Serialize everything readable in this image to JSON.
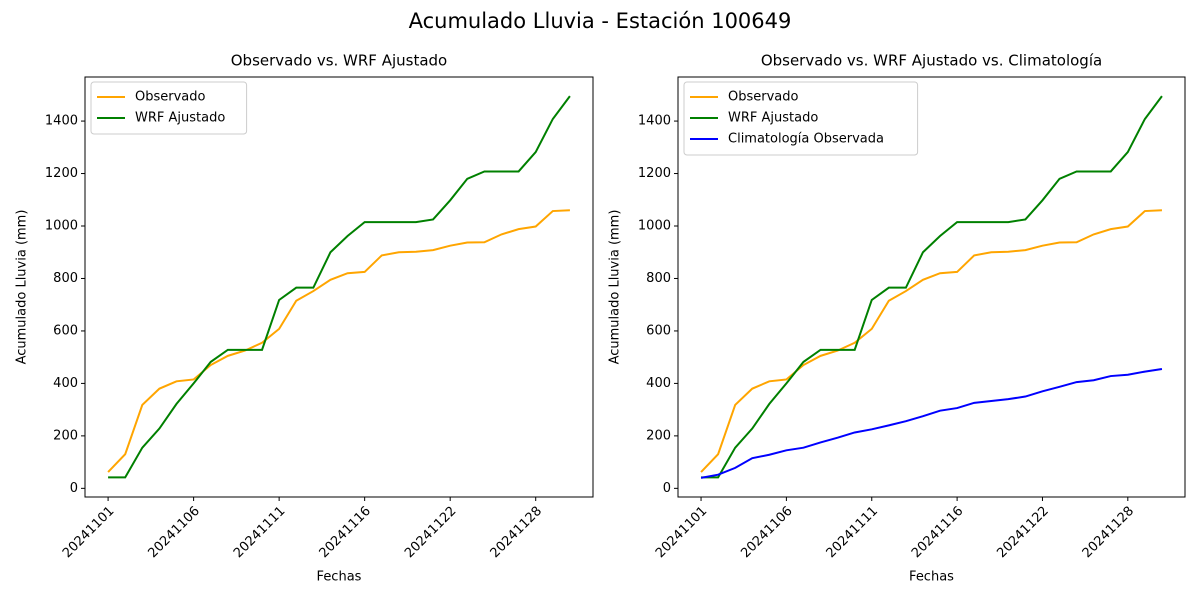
{
  "title": "Acumulado Lluvia - Estación 100649",
  "chart_data": [
    {
      "type": "line",
      "title": "Observado vs. WRF Ajustado",
      "xlabel": "Fechas",
      "ylabel": "Acumulado Lluvia (mm)",
      "categories": [
        "20241101",
        null,
        null,
        null,
        null,
        "20241106",
        null,
        null,
        null,
        null,
        "20241111",
        null,
        null,
        null,
        null,
        "20241116",
        null,
        null,
        null,
        null,
        "20241122",
        null,
        null,
        null,
        null,
        "20241128",
        null,
        null
      ],
      "series": [
        {
          "name": "Observado",
          "color": "#ffa500",
          "values": [
            62,
            130,
            318,
            380,
            408,
            415,
            470,
            505,
            525,
            555,
            608,
            715,
            752,
            795,
            820,
            825,
            888,
            900,
            902,
            908,
            925,
            937,
            938,
            968,
            988,
            998,
            1057,
            1060
          ]
        },
        {
          "name": "WRF Ajustado",
          "color": "#008000",
          "values": [
            42,
            42,
            155,
            228,
            322,
            400,
            482,
            528,
            528,
            528,
            718,
            765,
            765,
            900,
            962,
            1015,
            1015,
            1015,
            1015,
            1025,
            1098,
            1180,
            1208,
            1208,
            1208,
            1282,
            1408,
            1495
          ]
        }
      ],
      "ylim": [
        -33,
        1568
      ],
      "yticks": [
        0,
        200,
        400,
        600,
        800,
        1000,
        1200,
        1400
      ],
      "legend": "upper left",
      "grid": false
    },
    {
      "type": "line",
      "title": "Observado vs. WRF Ajustado vs. Climatología",
      "xlabel": "Fechas",
      "ylabel": "Acumulado Lluvia (mm)",
      "categories": [
        "20241101",
        null,
        null,
        null,
        null,
        "20241106",
        null,
        null,
        null,
        null,
        "20241111",
        null,
        null,
        null,
        null,
        "20241116",
        null,
        null,
        null,
        null,
        "20241122",
        null,
        null,
        null,
        null,
        "20241128",
        null,
        null
      ],
      "series": [
        {
          "name": "Observado",
          "color": "#ffa500",
          "values": [
            62,
            130,
            318,
            380,
            408,
            415,
            470,
            505,
            525,
            555,
            608,
            715,
            752,
            795,
            820,
            825,
            888,
            900,
            902,
            908,
            925,
            937,
            938,
            968,
            988,
            998,
            1057,
            1060
          ]
        },
        {
          "name": "WRF Ajustado",
          "color": "#008000",
          "values": [
            42,
            42,
            155,
            228,
            322,
            400,
            482,
            528,
            528,
            528,
            718,
            765,
            765,
            900,
            962,
            1015,
            1015,
            1015,
            1015,
            1025,
            1098,
            1180,
            1208,
            1208,
            1208,
            1282,
            1408,
            1495
          ]
        },
        {
          "name": "Climatología Observada",
          "color": "#0000ff",
          "values": [
            40,
            52,
            78,
            115,
            128,
            145,
            155,
            175,
            193,
            213,
            225,
            240,
            256,
            275,
            296,
            306,
            326,
            333,
            340,
            350,
            370,
            387,
            405,
            412,
            428,
            433,
            445,
            455
          ]
        }
      ],
      "ylim": [
        -33,
        1568
      ],
      "yticks": [
        0,
        200,
        400,
        600,
        800,
        1000,
        1200,
        1400
      ],
      "legend": "upper left",
      "grid": false
    }
  ]
}
